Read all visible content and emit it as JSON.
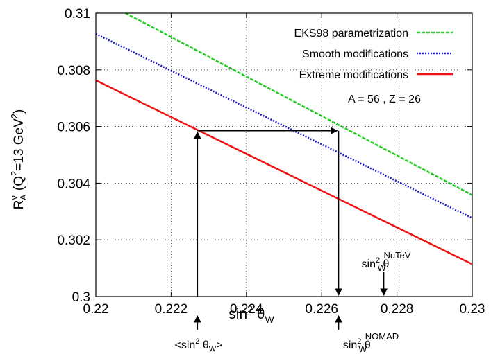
{
  "chart_data": {
    "type": "line",
    "xlabel": {
      "main": "sin",
      "sup": "2",
      "theta": "θ",
      "sub": "W"
    },
    "ylabel": {
      "r": "R",
      "r_sup": "ν",
      "r_sub": "A",
      "open": " (Q",
      "q_sup": "2",
      "mid": "=13 GeV",
      "gev_sup": "2",
      "close": ")"
    },
    "xlim": [
      0.22,
      0.23
    ],
    "ylim": [
      0.3,
      0.31
    ],
    "x_ticks": [
      0.22,
      0.222,
      0.224,
      0.226,
      0.228,
      0.23
    ],
    "x_tick_labels": [
      "0.22",
      "0.222",
      "0.224",
      "0.226",
      "0.228",
      "0.23"
    ],
    "y_ticks": [
      0.3,
      0.302,
      0.304,
      0.306,
      0.308,
      0.31
    ],
    "y_tick_labels": [
      "0.3",
      "0.302",
      "0.304",
      "0.306",
      "0.308",
      "0.31"
    ],
    "grid": true,
    "legend_position": "top-right",
    "series": [
      {
        "name": "EKS98 parametrization",
        "color": "#22cc22",
        "style": "dashed",
        "x": [
          0.22,
          0.23
        ],
        "y": [
          0.31055,
          0.30358
        ]
      },
      {
        "name": "Smooth modifications",
        "color": "#1a1acc",
        "style": "dotted",
        "x": [
          0.22,
          0.23
        ],
        "y": [
          0.30927,
          0.30277
        ]
      },
      {
        "name": "Extreme modifications",
        "color": "#ee1111",
        "style": "solid",
        "x": [
          0.22,
          0.23
        ],
        "y": [
          0.30763,
          0.30114
        ]
      }
    ],
    "annotations": {
      "nucleus": "A = 56 , Z = 26",
      "avg_sin_label": {
        "open": "<sin",
        "sup": "2",
        "theta": " θ",
        "sub": "W",
        "close": ">"
      },
      "nomad_label": {
        "main": "sin",
        "sup": "2",
        "theta": " θ",
        "sub": "W",
        "supsub": "NOMAD"
      },
      "nutev_label": {
        "main": "sin",
        "sup": "2",
        "theta": " θ",
        "sub": "W",
        "supsub": "NuTeV"
      },
      "avg_sin_x": 0.2227,
      "nomad_x": 0.22645,
      "nutev_x": 0.22765,
      "projection_y": 0.30585
    }
  }
}
